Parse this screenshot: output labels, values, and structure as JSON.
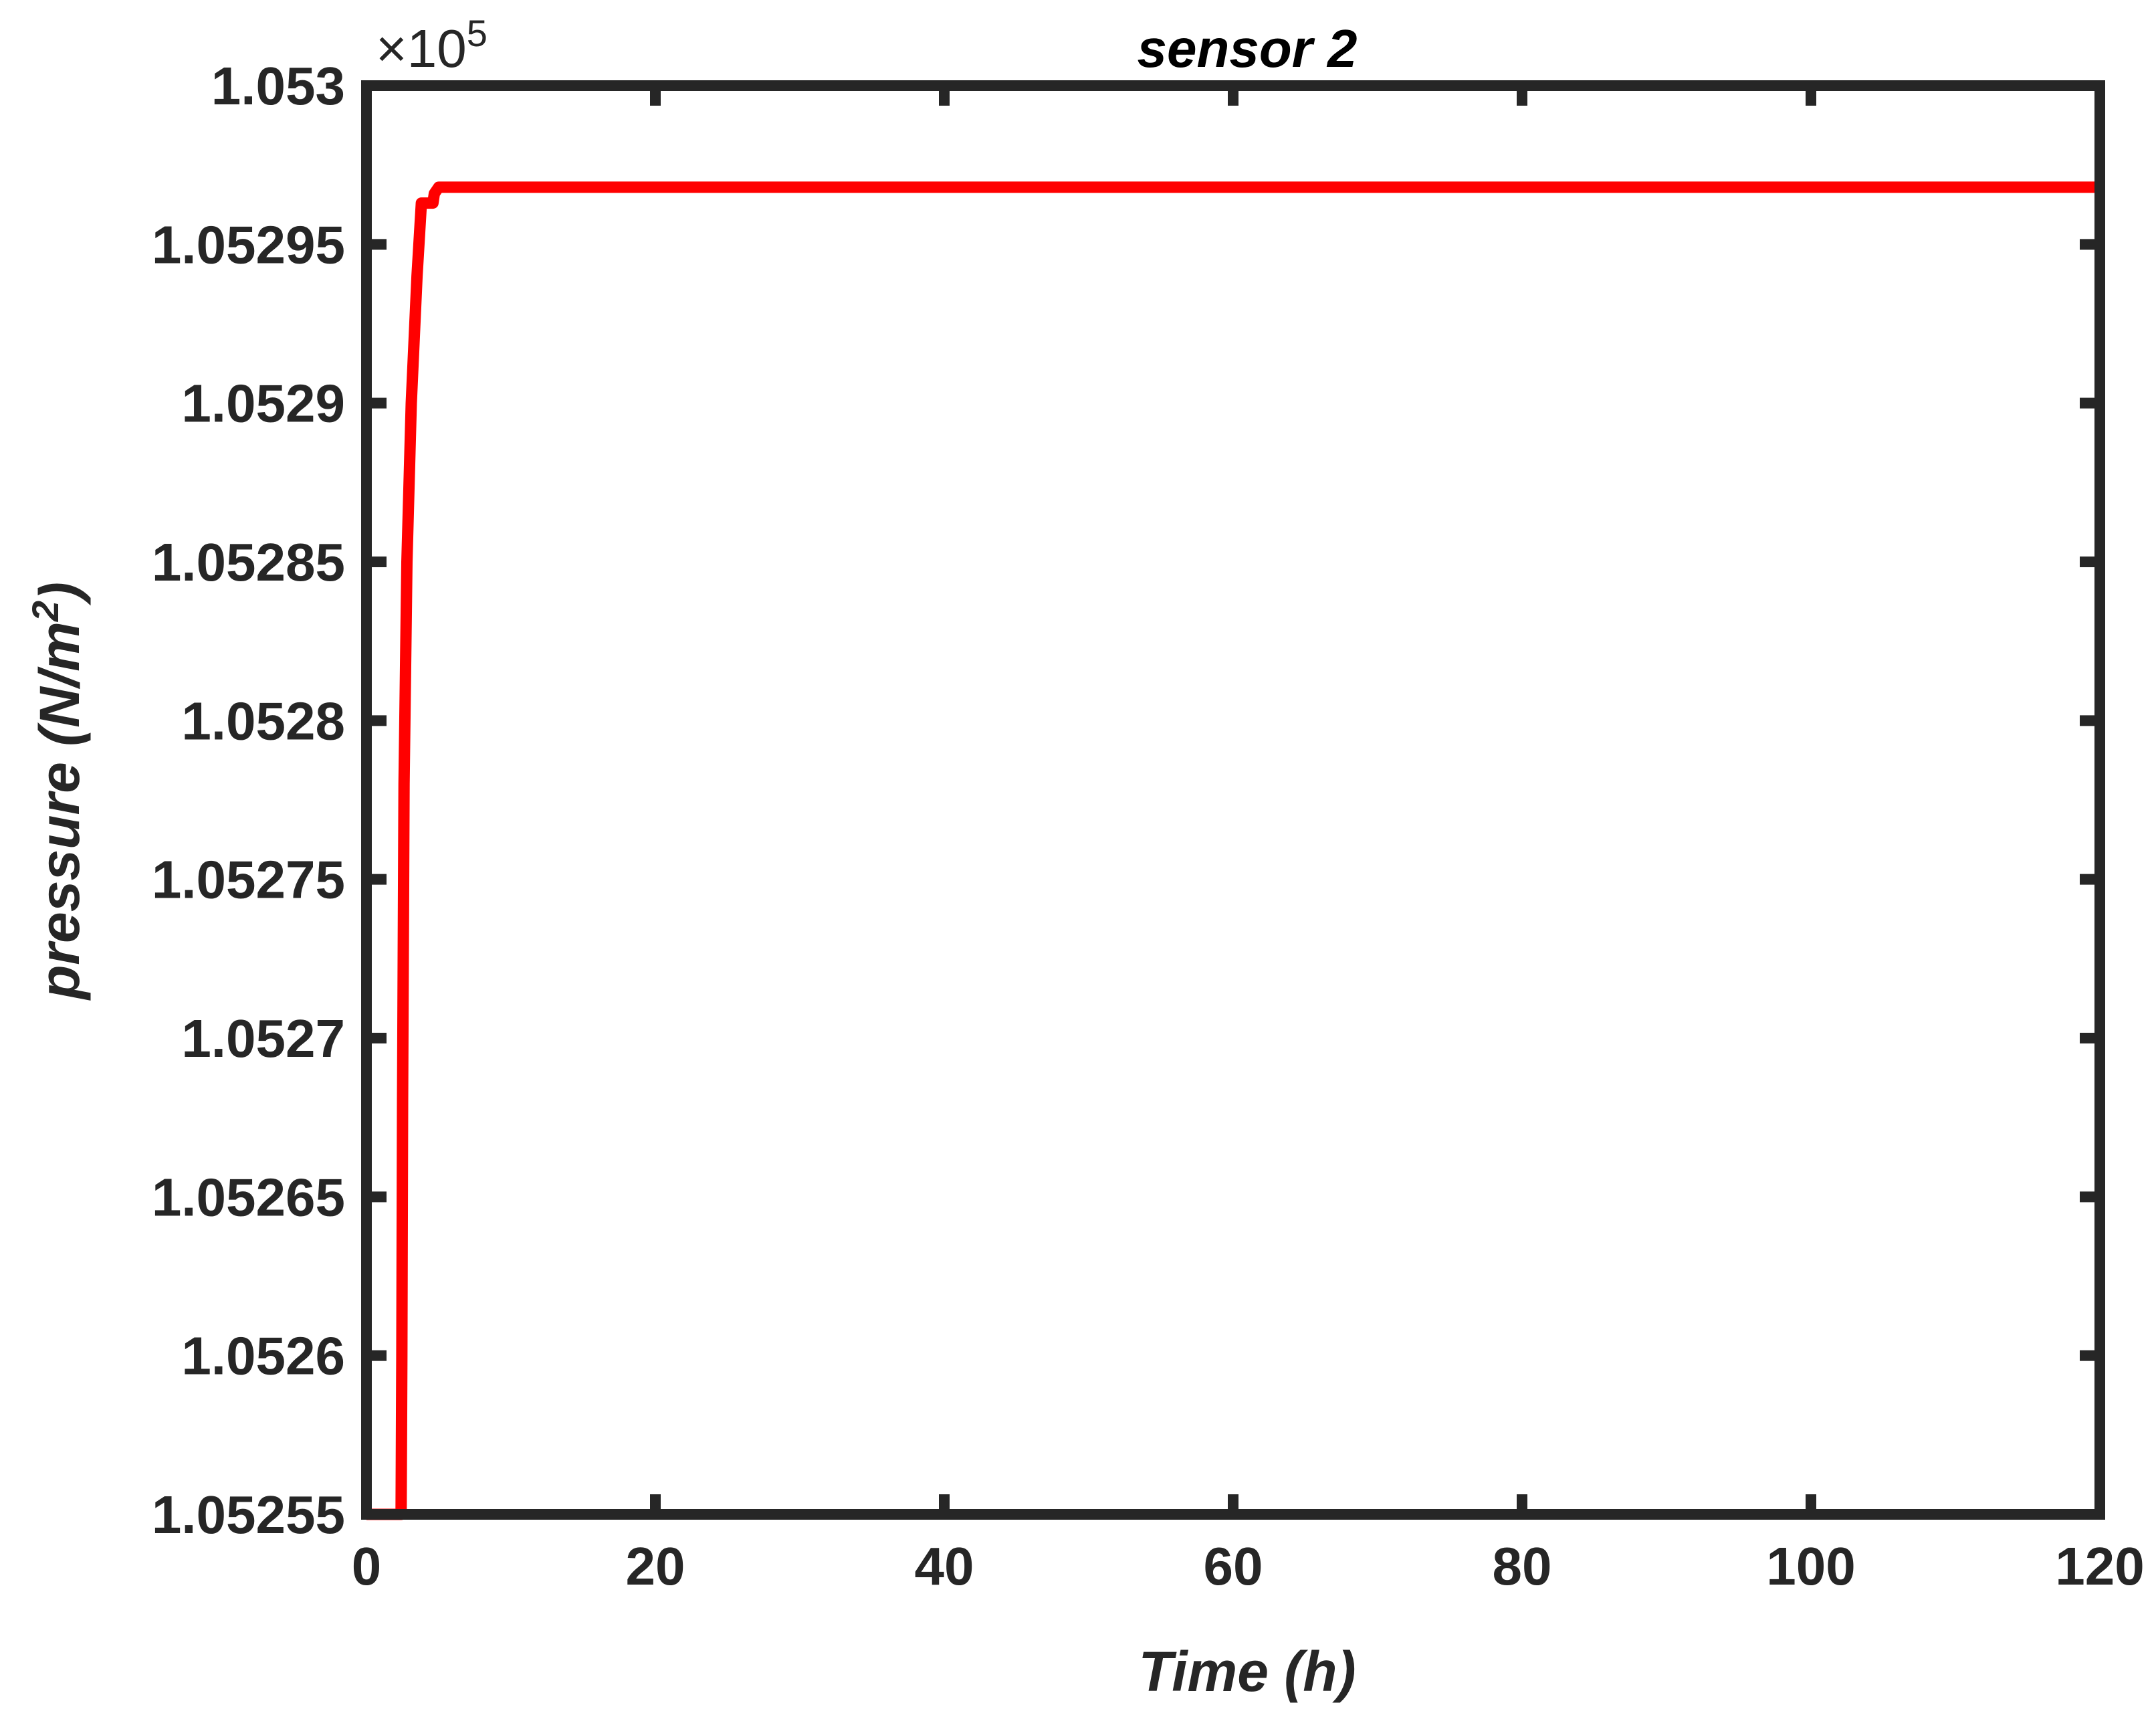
{
  "chart_data": {
    "type": "line",
    "title": "sensor 2",
    "xlabel": "Time (h)",
    "ylabel": {
      "main": "pressure (N/m",
      "sup": "2",
      "tail": ")"
    },
    "xlim": [
      0,
      120
    ],
    "ylim": [
      1.05255,
      1.053
    ],
    "xticks": [
      "0",
      "20",
      "40",
      "60",
      "80",
      "100",
      "120"
    ],
    "xtick_values": [
      0,
      20,
      40,
      60,
      80,
      100,
      120
    ],
    "yticks": [
      "1.05255",
      "1.0526",
      "1.05265",
      "1.0527",
      "1.05275",
      "1.0528",
      "1.05285",
      "1.0529",
      "1.05295",
      "1.053"
    ],
    "ytick_values": [
      1.05255,
      1.0526,
      1.05265,
      1.0527,
      1.05275,
      1.0528,
      1.05285,
      1.0529,
      1.05295,
      1.053
    ],
    "exponent": {
      "prefix": "×10",
      "power": "5"
    },
    "grid": false,
    "colors": {
      "axes": "#262626",
      "series": "#ff0000"
    },
    "series": [
      {
        "x": [
          0,
          2.4,
          2.45,
          2.5,
          2.6,
          2.8,
          3.1,
          3.5,
          3.8,
          4.6,
          4.7,
          5.0,
          10,
          60,
          120
        ],
        "y": [
          1.05255,
          1.05255,
          1.0526,
          1.05268,
          1.05278,
          1.05285,
          1.0529,
          1.05294,
          1.052963,
          1.052963,
          1.052966,
          1.052968,
          1.052968,
          1.052968,
          1.052968
        ]
      }
    ]
  }
}
